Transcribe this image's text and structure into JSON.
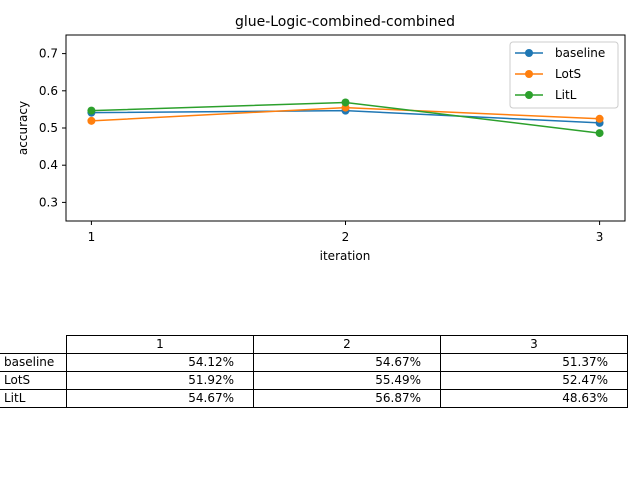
{
  "chart_data": {
    "type": "line",
    "title": "glue-Logic-combined-combined",
    "xlabel": "iteration",
    "ylabel": "accuracy",
    "x": [
      1,
      2,
      3
    ],
    "xticks": [
      "1",
      "2",
      "3"
    ],
    "ylim": [
      0.25,
      0.75
    ],
    "yticks": [
      0.3,
      0.4,
      0.5,
      0.6,
      0.7
    ],
    "ytick_labels": [
      "0.3",
      "0.4",
      "0.5",
      "0.6",
      "0.7"
    ],
    "grid": false,
    "legend_position": "top-right",
    "series": [
      {
        "name": "baseline",
        "color": "#1f77b4",
        "values": [
          0.5412,
          0.5467,
          0.5137
        ]
      },
      {
        "name": "LotS",
        "color": "#ff7f0e",
        "values": [
          0.5192,
          0.5549,
          0.5247
        ]
      },
      {
        "name": "LitL",
        "color": "#2ca02c",
        "values": [
          0.5467,
          0.5687,
          0.4863
        ]
      }
    ]
  },
  "table": {
    "columns": [
      "1",
      "2",
      "3"
    ],
    "rows": [
      {
        "label": "baseline",
        "cells": [
          "54.12%",
          "54.67%",
          "51.37%"
        ]
      },
      {
        "label": "LotS",
        "cells": [
          "51.92%",
          "55.49%",
          "52.47%"
        ]
      },
      {
        "label": "LitL",
        "cells": [
          "54.67%",
          "56.87%",
          "48.63%"
        ]
      }
    ]
  }
}
